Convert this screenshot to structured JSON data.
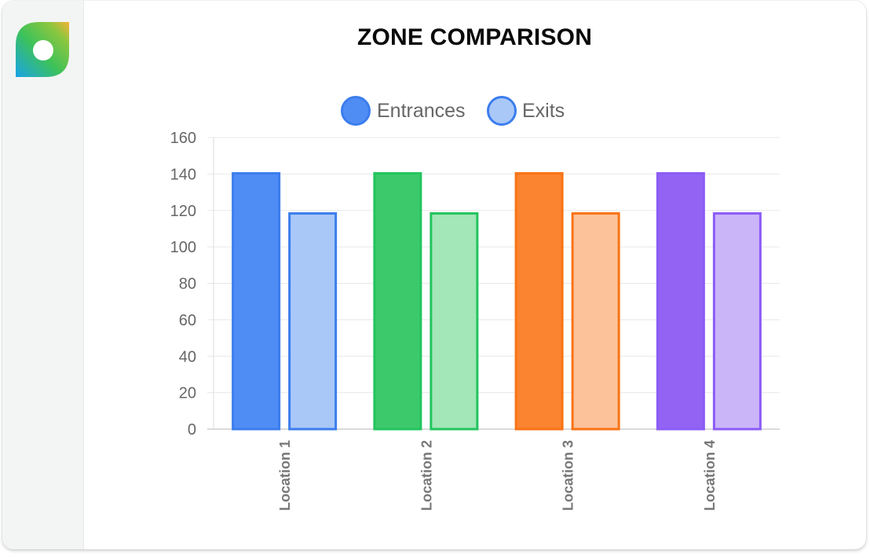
{
  "colors": {
    "blue": "#4f8df5",
    "blue_light": "#a9c8f8",
    "blue_border": "#3b7ded",
    "green": "#3cc96b",
    "green_light": "#a3e6b8",
    "green_border": "#22c55e",
    "orange": "#fb8431",
    "orange_light": "#fcc29a",
    "orange_border": "#f97316",
    "purple": "#9363f4",
    "purple_light": "#cbb5f9",
    "purple_border": "#8b5cf6",
    "axis_text": "#666666",
    "grid": "#e8e8e8"
  },
  "sidebar": {
    "logo_icon": "leaf-ring-logo"
  },
  "chart_data": {
    "type": "bar",
    "title": "ZONE COMPARISON",
    "categories": [
      "Location 1",
      "Location 2",
      "Location 3",
      "Location 4"
    ],
    "series": [
      {
        "name": "Entrances",
        "values": [
          141,
          141,
          141,
          141
        ]
      },
      {
        "name": "Exits",
        "values": [
          119,
          119,
          119,
          119
        ]
      }
    ],
    "bar_colors": {
      "Entrances": [
        "#4f8df5",
        "#3cc96b",
        "#fb8431",
        "#9363f4"
      ],
      "Exits": [
        "#a9c8f8",
        "#a3e6b8",
        "#fcc29a",
        "#cbb5f9"
      ]
    },
    "border_colors": [
      "#3b7ded",
      "#22c55e",
      "#f97316",
      "#8b5cf6"
    ],
    "ylim": [
      0,
      160
    ],
    "yticks": [
      0,
      20,
      40,
      60,
      80,
      100,
      120,
      140,
      160
    ],
    "xlabel": "",
    "ylabel": "",
    "grid": true,
    "legend_position": "top"
  }
}
